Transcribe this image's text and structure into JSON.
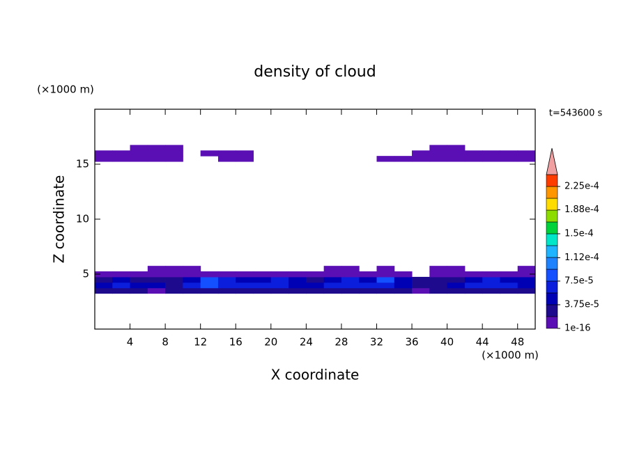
{
  "chart_data": {
    "type": "contour",
    "title": "density of cloud",
    "xlabel": "X coordinate",
    "ylabel": "Z coordinate",
    "xunit": "(×1000 m)",
    "yunit": "(×1000 m)",
    "annotation": "t=543600 s",
    "xlim": [
      0,
      50
    ],
    "ylim": [
      0,
      20
    ],
    "xticks": [
      4,
      8,
      12,
      16,
      20,
      24,
      28,
      32,
      36,
      40,
      44,
      48
    ],
    "yticks": [
      5,
      10,
      15
    ],
    "x": [
      1,
      3,
      5,
      7,
      9,
      11,
      13,
      15,
      17,
      19,
      21,
      23,
      25,
      27,
      29,
      31,
      33,
      35,
      37,
      39,
      41,
      43,
      45,
      47,
      49
    ],
    "z": [
      3.5,
      4.0,
      4.5,
      5.0,
      5.5,
      15.5,
      16.0,
      16.5
    ],
    "density": [
      [
        2e-05,
        3e-05,
        2e-05,
        1e-05,
        2e-05,
        3e-05,
        3e-05,
        3e-05,
        2e-05,
        2e-05,
        3e-05,
        2e-05,
        2e-05,
        3e-05,
        3e-05,
        2e-05,
        3e-05,
        2e-05,
        1e-05,
        2e-05,
        3e-05,
        3e-05,
        2e-05,
        3e-05,
        2e-05
      ],
      [
        5e-05,
        6e-05,
        5e-05,
        4e-05,
        3e-05,
        6e-05,
        8e-05,
        7e-05,
        6e-05,
        6e-05,
        7e-05,
        5e-05,
        5e-05,
        6e-05,
        7e-05,
        6e-05,
        7e-05,
        5e-05,
        3e-05,
        3e-05,
        4e-05,
        6e-05,
        7e-05,
        6e-05,
        5e-05
      ],
      [
        3e-05,
        4e-05,
        3e-05,
        2e-05,
        2e-05,
        5e-05,
        9e-05,
        6e-05,
        5e-05,
        5e-05,
        6e-05,
        4e-05,
        3e-05,
        5e-05,
        6e-05,
        5e-05,
        8e-05,
        4e-05,
        2e-05,
        2e-05,
        3e-05,
        5e-05,
        6e-05,
        5e-05,
        4e-05
      ],
      [
        1e-06,
        1e-06,
        1e-06,
        1e-06,
        1e-06,
        1e-06,
        1e-06,
        1e-06,
        1e-06,
        1e-06,
        1e-06,
        1e-06,
        1e-06,
        1e-06,
        1e-06,
        1e-06,
        1e-06,
        1e-06,
        null,
        1e-06,
        1e-06,
        1e-06,
        1e-06,
        1e-06,
        1e-06
      ],
      [
        null,
        null,
        null,
        1e-06,
        1e-06,
        1e-06,
        null,
        null,
        null,
        null,
        null,
        null,
        null,
        1e-06,
        1e-06,
        null,
        1e-06,
        null,
        null,
        1e-06,
        1e-06,
        null,
        null,
        null,
        1e-06
      ],
      [
        1e-06,
        1e-06,
        1e-06,
        1e-06,
        1e-06,
        null,
        null,
        1e-06,
        1e-06,
        null,
        null,
        null,
        null,
        null,
        null,
        null,
        1e-06,
        1e-06,
        1e-06,
        1e-06,
        1e-06,
        1e-06,
        1e-06,
        1e-06,
        1e-06
      ],
      [
        1e-06,
        1e-06,
        1e-06,
        1e-06,
        1e-06,
        null,
        1e-06,
        1e-06,
        1e-06,
        null,
        null,
        null,
        null,
        null,
        null,
        null,
        null,
        null,
        1e-06,
        1e-06,
        1e-06,
        1e-06,
        1e-06,
        1e-06,
        1e-06
      ],
      [
        null,
        null,
        1e-06,
        1e-06,
        1e-06,
        null,
        null,
        null,
        null,
        null,
        null,
        null,
        null,
        null,
        null,
        null,
        null,
        null,
        null,
        1e-06,
        1e-06,
        null,
        null,
        null,
        null
      ]
    ],
    "level_step": 1.875e-05,
    "colors": [
      "#5a0fb4",
      "#1e0a8c",
      "#0000b4",
      "#0a1edc",
      "#1450ff",
      "#1e82ff",
      "#1eb4ff",
      "#00e6c8",
      "#00d23c",
      "#8cdc00",
      "#ffdc00",
      "#ff9600",
      "#ff3c00"
    ],
    "over_color": "#f0a0a0",
    "colorbar_ticks": [
      1e-16,
      {
        "value": 3.75e-05,
        "label": "3.75e-5"
      },
      {
        "value": 7.5e-05,
        "label": "7.5e-5"
      },
      {
        "value": 0.000112,
        "label": "1.12e-4"
      },
      {
        "value": 0.00015,
        "label": "1.5e-4"
      },
      {
        "value": 0.000188,
        "label": "1.88e-4"
      },
      {
        "value": 0.000225,
        "label": "2.25e-4"
      }
    ]
  }
}
